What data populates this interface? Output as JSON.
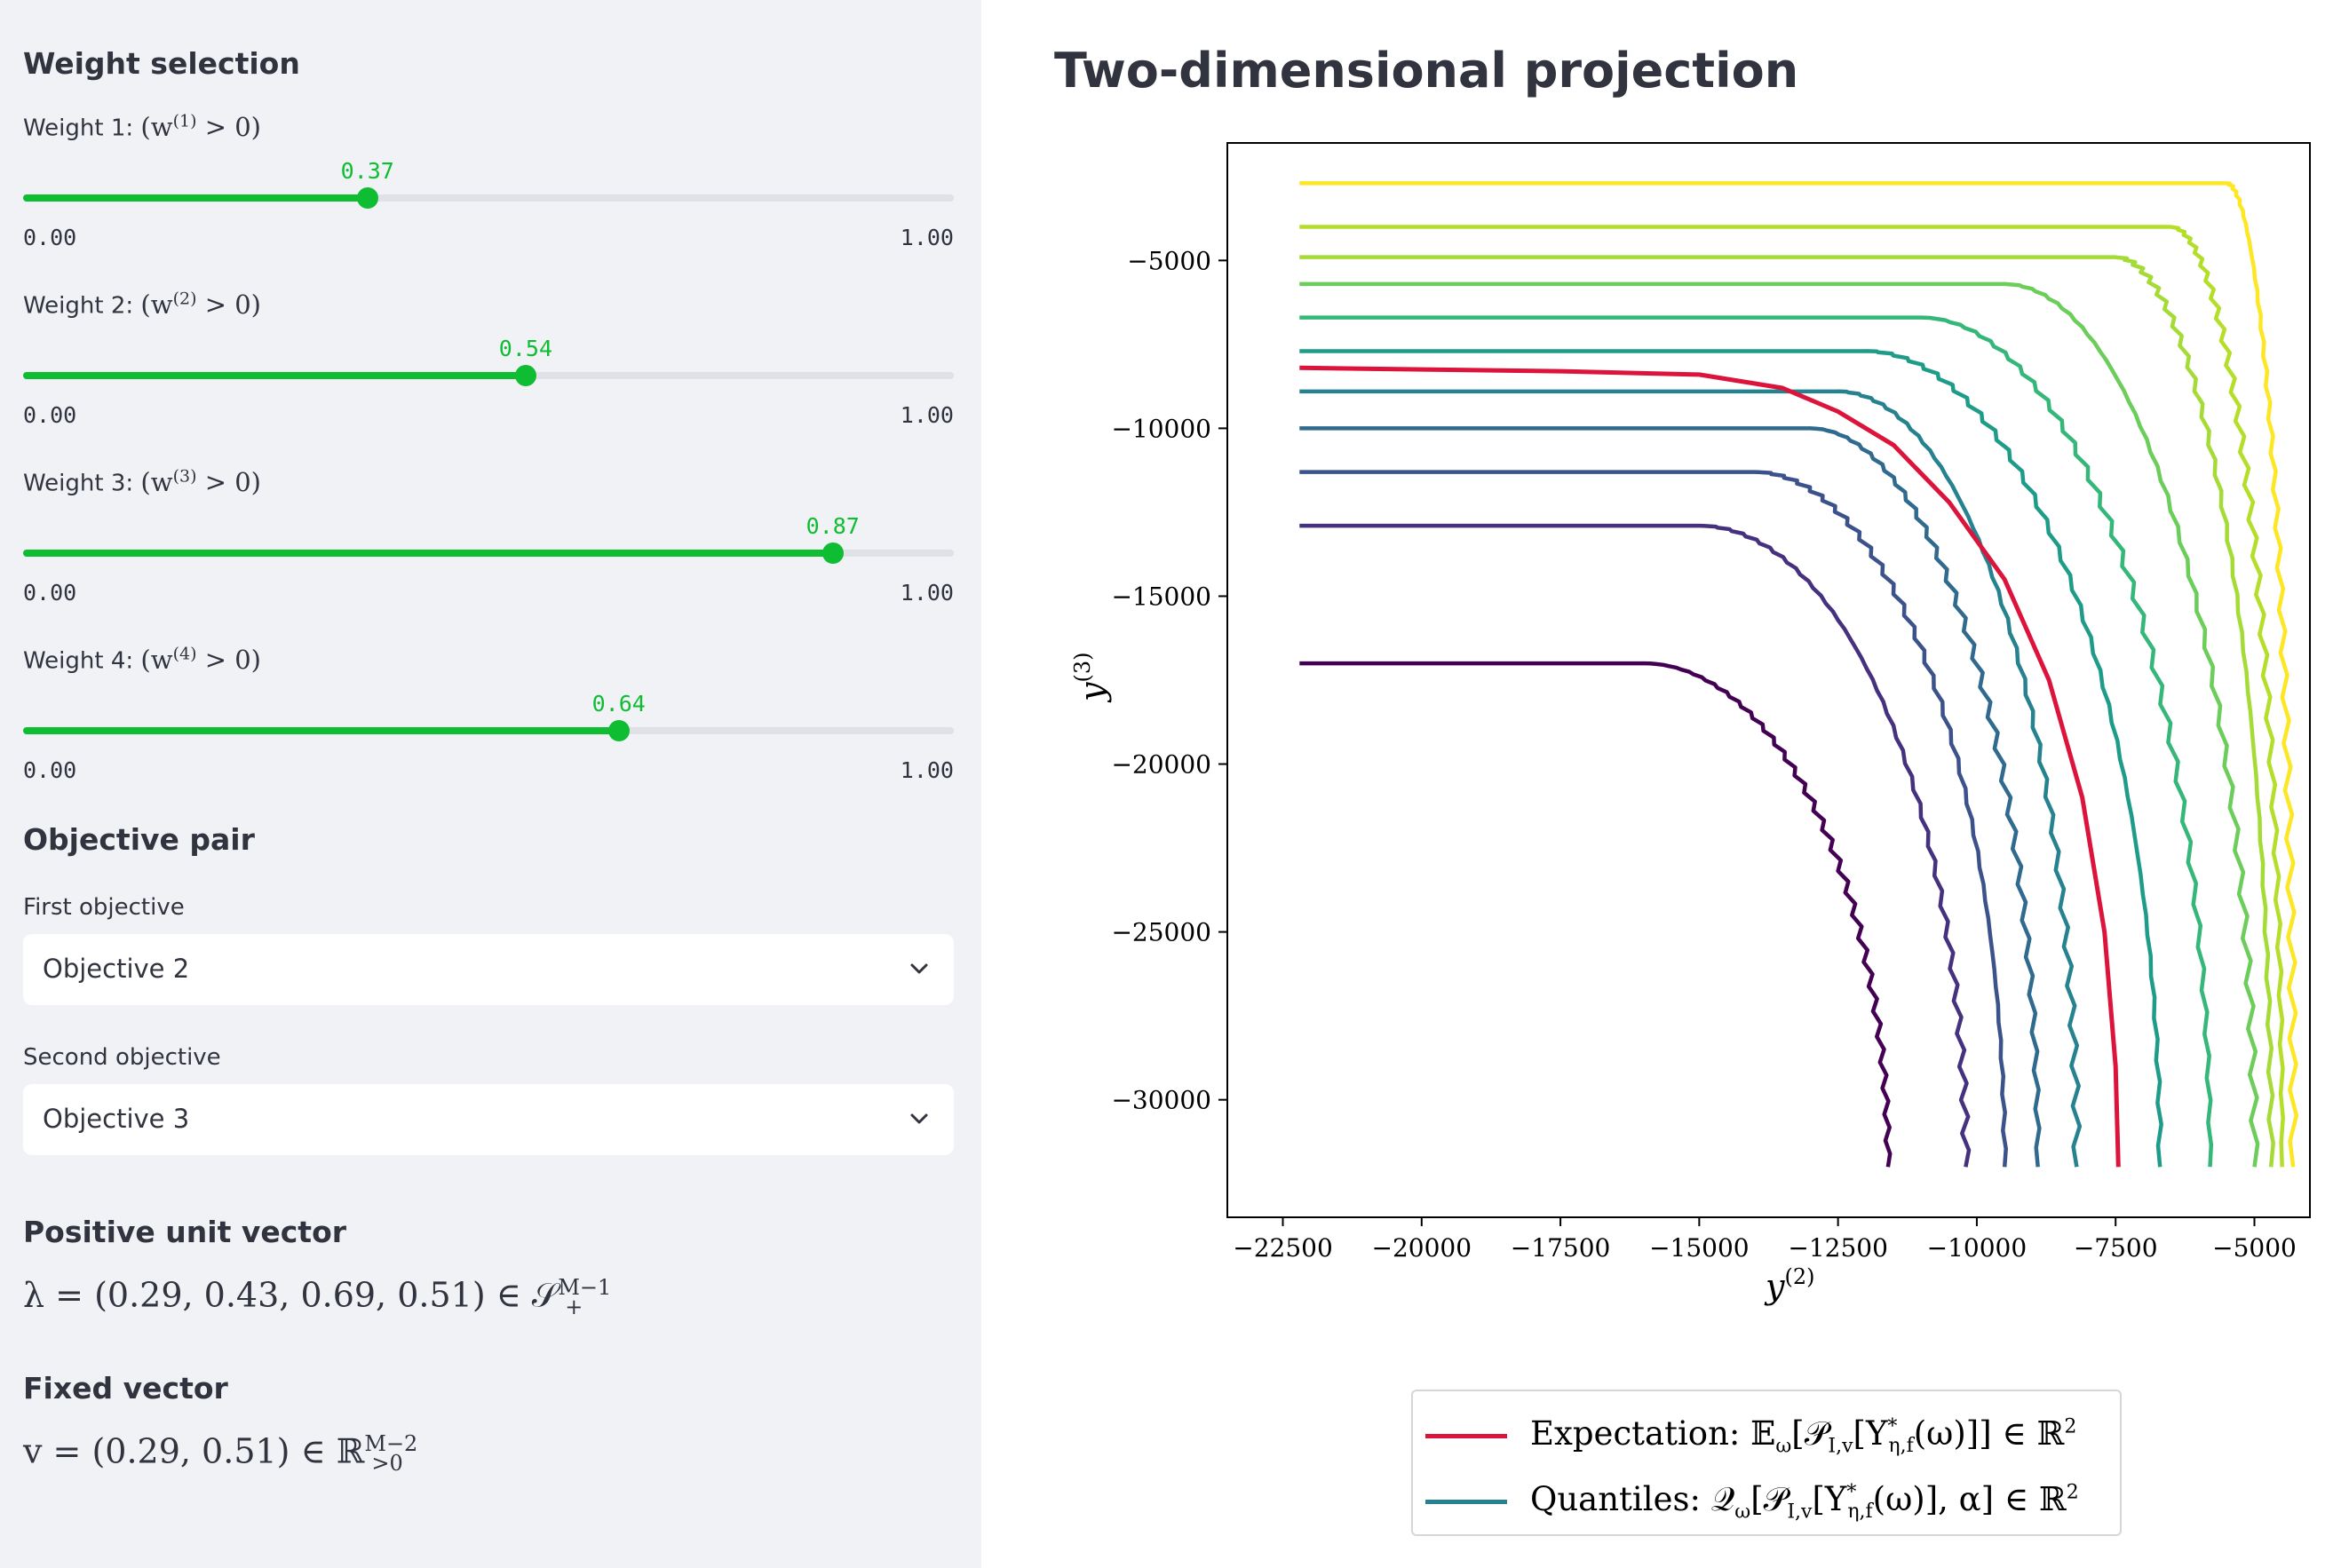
{
  "sidebar": {
    "weights_header": "Weight selection",
    "weights": [
      {
        "label": "Weight 1:",
        "math": "(w",
        "sup": "(1)",
        "math_tail": " > 0)",
        "value": 0.37,
        "value_label": "0.37",
        "min_label": "0.00",
        "max_label": "1.00"
      },
      {
        "label": "Weight 2:",
        "math": "(w",
        "sup": "(2)",
        "math_tail": " > 0)",
        "value": 0.54,
        "value_label": "0.54",
        "min_label": "0.00",
        "max_label": "1.00"
      },
      {
        "label": "Weight 3:",
        "math": "(w",
        "sup": "(3)",
        "math_tail": " > 0)",
        "value": 0.87,
        "value_label": "0.87",
        "min_label": "0.00",
        "max_label": "1.00"
      },
      {
        "label": "Weight 4:",
        "math": "(w",
        "sup": "(4)",
        "math_tail": " > 0)",
        "value": 0.64,
        "value_label": "0.64",
        "min_label": "0.00",
        "max_label": "1.00"
      }
    ],
    "objective_header": "Objective pair",
    "first_objective_label": "First objective",
    "first_objective_value": "Objective 2",
    "second_objective_label": "Second objective",
    "second_objective_value": "Objective 3",
    "unit_vector_header": "Positive unit vector",
    "unit_vector_lhs": "λ = (0.29, 0.43, 0.69, 0.51) ∈ 𝒮",
    "unit_vector_sup": "M−1",
    "unit_vector_sub": "+",
    "fixed_vector_header": "Fixed vector",
    "fixed_vector_lhs": "v = (0.29, 0.51) ∈ ℝ",
    "fixed_vector_sup": "M−2",
    "fixed_vector_sub": ">0"
  },
  "main": {
    "title": "Two-dimensional projection"
  },
  "chart_data": {
    "type": "line",
    "title": "",
    "xlabel": "y(2)",
    "ylabel": "y(3)",
    "xlim": [
      -23500,
      -4000
    ],
    "ylim": [
      -33500,
      -1500
    ],
    "xticks": [
      -22500,
      -20000,
      -17500,
      -15000,
      -12500,
      -10000,
      -7500,
      -5000
    ],
    "xtick_labels": [
      "−22500",
      "−20000",
      "−17500",
      "−15000",
      "−12500",
      "−10000",
      "−7500",
      "−5000"
    ],
    "yticks": [
      -5000,
      -10000,
      -15000,
      -20000,
      -25000,
      -30000
    ],
    "ytick_labels": [
      "−5000",
      "−10000",
      "−15000",
      "−20000",
      "−25000",
      "−30000"
    ],
    "grid": false,
    "legend_position": "bottom-center",
    "expectation": {
      "color": "#dc143c",
      "start_y": -8200,
      "end_x": -7450,
      "knee_x": -15000,
      "points": [
        [
          -22200,
          -8200
        ],
        [
          -17500,
          -8300
        ],
        [
          -15000,
          -8400
        ],
        [
          -13500,
          -8800
        ],
        [
          -12500,
          -9500
        ],
        [
          -11500,
          -10500
        ],
        [
          -10500,
          -12200
        ],
        [
          -9500,
          -14500
        ],
        [
          -8700,
          -17500
        ],
        [
          -8100,
          -21000
        ],
        [
          -7700,
          -25000
        ],
        [
          -7500,
          -29000
        ],
        [
          -7450,
          -32000
        ]
      ]
    },
    "quantiles": [
      {
        "start_y": -17000,
        "end_x": -11600,
        "knee_x": -16000,
        "color": "#440154"
      },
      {
        "start_y": -12900,
        "end_x": -10200,
        "knee_x": -15000,
        "color": "#46317e"
      },
      {
        "start_y": -11300,
        "end_x": -9500,
        "knee_x": -14000,
        "color": "#3c528b"
      },
      {
        "start_y": -10000,
        "end_x": -8900,
        "knee_x": -13000,
        "color": "#306a8e"
      },
      {
        "start_y": -8900,
        "end_x": -8200,
        "knee_x": -12500,
        "color": "#26828e"
      },
      {
        "start_y": -7700,
        "end_x": -6700,
        "knee_x": -12000,
        "color": "#1e9c89"
      },
      {
        "start_y": -6700,
        "end_x": -5800,
        "knee_x": -11000,
        "color": "#35b779"
      },
      {
        "start_y": -5700,
        "end_x": -5000,
        "knee_x": -9500,
        "color": "#6ccd5a"
      },
      {
        "start_y": -4900,
        "end_x": -4700,
        "knee_x": -7500,
        "color": "#a5db36"
      },
      {
        "start_y": -4000,
        "end_x": -4500,
        "knee_x": -6500,
        "color": "#b5de2b"
      },
      {
        "start_y": -2700,
        "end_x": -4300,
        "knee_x": -5500,
        "color": "#fde725"
      }
    ],
    "legend": {
      "expectation_label": "Expectation: 𝔼",
      "expectation_formula": "[𝒫",
      "quantiles_label": "Quantiles: 𝒬",
      "quantiles_formula": "[𝒫"
    }
  }
}
